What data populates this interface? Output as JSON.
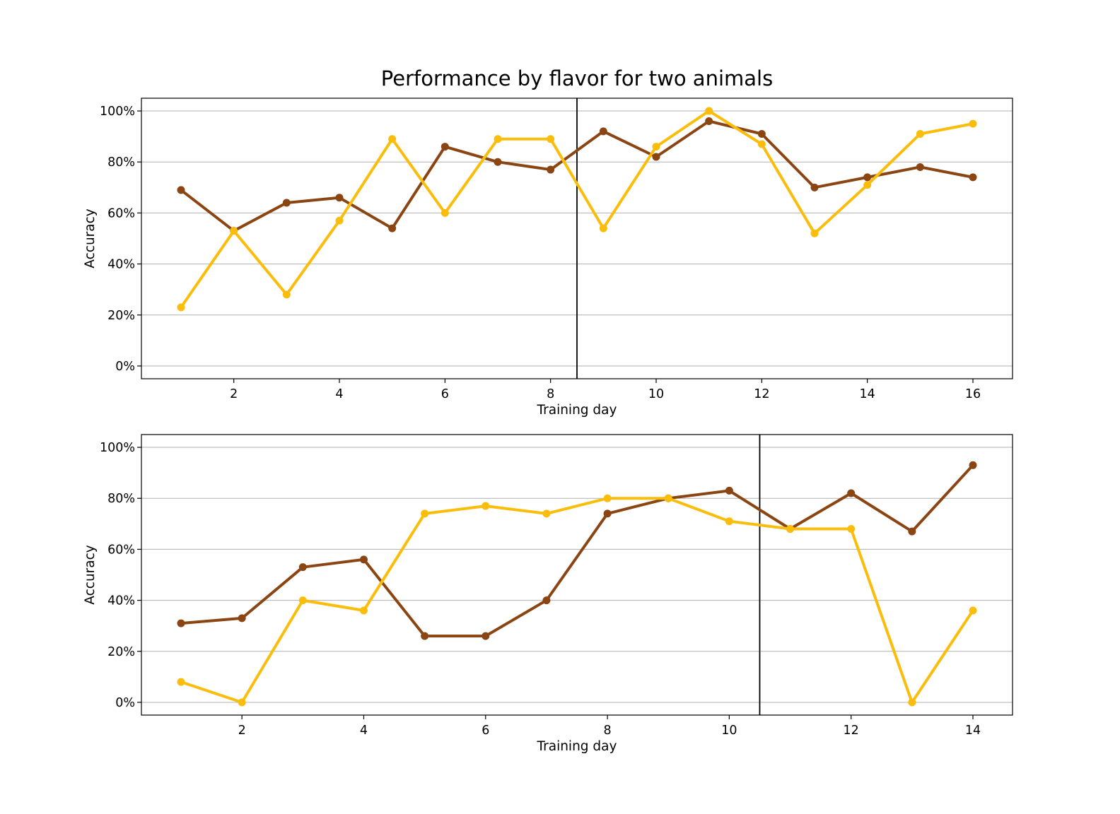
{
  "figure": {
    "title": "Performance by flavor for two animals"
  },
  "colors": {
    "series_a": "#8b4513",
    "series_b": "#fbbd0b",
    "grid": "#b0b0b0",
    "marker_line": "#000000"
  },
  "chart_data": [
    {
      "type": "line",
      "title": "",
      "xlabel": "Training day",
      "ylabel": "Accuracy",
      "xlim": [
        0.25,
        16.75
      ],
      "ylim": [
        -5,
        105
      ],
      "xticks": [
        2,
        4,
        6,
        8,
        10,
        12,
        14,
        16
      ],
      "yticks": [
        0,
        20,
        40,
        60,
        80,
        100
      ],
      "ytick_labels": [
        "0%",
        "20%",
        "40%",
        "60%",
        "80%",
        "100%"
      ],
      "grid": "horizontal",
      "vertical_line_x": 8.5,
      "x": [
        1,
        2,
        3,
        4,
        5,
        6,
        7,
        8,
        9,
        10,
        11,
        12,
        13,
        14,
        15,
        16
      ],
      "series": [
        {
          "color": "#8b4513",
          "values": [
            69,
            53,
            64,
            66,
            54,
            86,
            80,
            77,
            92,
            82,
            96,
            91,
            70,
            74,
            78,
            74
          ]
        },
        {
          "color": "#fbbd0b",
          "values": [
            23,
            53,
            28,
            57,
            89,
            60,
            89,
            89,
            54,
            86,
            100,
            87,
            52,
            71,
            91,
            95
          ]
        }
      ]
    },
    {
      "type": "line",
      "title": "",
      "xlabel": "Training day",
      "ylabel": "Accuracy",
      "xlim": [
        0.35,
        14.65
      ],
      "ylim": [
        -5,
        105
      ],
      "xticks": [
        2,
        4,
        6,
        8,
        10,
        12,
        14
      ],
      "yticks": [
        0,
        20,
        40,
        60,
        80,
        100
      ],
      "ytick_labels": [
        "0%",
        "20%",
        "40%",
        "60%",
        "80%",
        "100%"
      ],
      "grid": "horizontal",
      "vertical_line_x": 10.5,
      "x": [
        1,
        2,
        3,
        4,
        5,
        6,
        7,
        8,
        9,
        10,
        11,
        12,
        13,
        14
      ],
      "series": [
        {
          "color": "#8b4513",
          "values": [
            31,
            33,
            53,
            56,
            26,
            26,
            40,
            74,
            80,
            83,
            68,
            82,
            67,
            93
          ]
        },
        {
          "color": "#fbbd0b",
          "values": [
            8,
            0,
            40,
            36,
            74,
            77,
            74,
            80,
            80,
            71,
            68,
            68,
            0,
            36
          ]
        }
      ]
    }
  ]
}
